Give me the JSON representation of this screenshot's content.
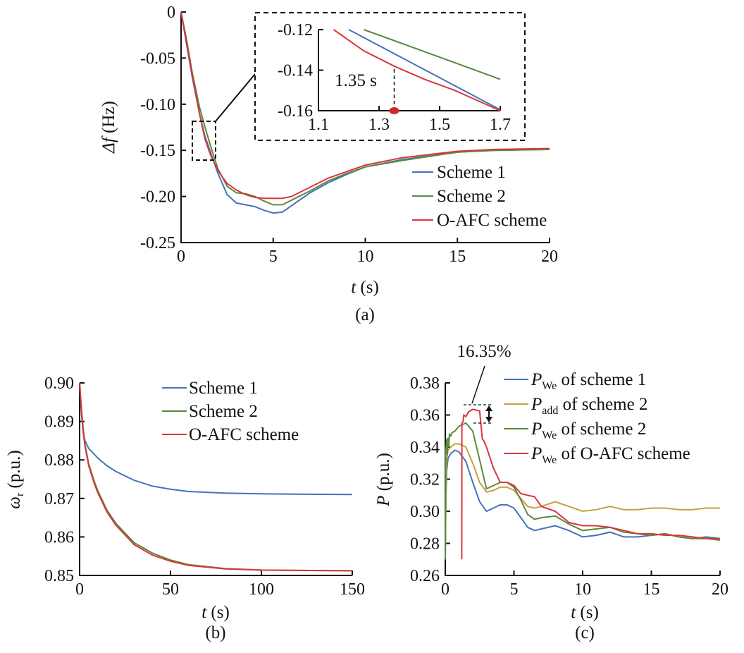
{
  "chart_data": [
    {
      "id": "a",
      "type": "line",
      "caption": "(a)",
      "ylabel": "Δf (Hz)",
      "ylabel_var": "Δf",
      "ylabel_unit": " (Hz)",
      "xlabel_var": "t",
      "xlabel_unit": " (s)",
      "xlim": [
        0,
        20
      ],
      "ylim": [
        -0.25,
        0
      ],
      "xticks": [
        0,
        5,
        10,
        15,
        20
      ],
      "yticks": [
        0,
        -0.05,
        -0.1,
        -0.15,
        -0.2,
        -0.25
      ],
      "ytick_labels": [
        "0",
        "-0.05",
        "-0.10",
        "-0.15",
        "-0.20",
        "-0.25"
      ],
      "legend_position": "right",
      "series": [
        {
          "name": "Scheme 1",
          "color": "#4472b8",
          "x": [
            0,
            0.3,
            0.6,
            1.0,
            1.3,
            1.6,
            2.0,
            2.5,
            3.0,
            3.5,
            4.0,
            4.5,
            5.0,
            5.5,
            6.0,
            7.0,
            8.0,
            9.0,
            10.0,
            12.0,
            15.0,
            17.0,
            20.0
          ],
          "y": [
            0,
            -0.035,
            -0.07,
            -0.11,
            -0.135,
            -0.152,
            -0.175,
            -0.198,
            -0.207,
            -0.209,
            -0.211,
            -0.215,
            -0.218,
            -0.217,
            -0.21,
            -0.196,
            -0.185,
            -0.176,
            -0.168,
            -0.16,
            -0.152,
            -0.15,
            -0.149
          ]
        },
        {
          "name": "Scheme 2",
          "color": "#5a8a3a",
          "x": [
            0,
            0.3,
            0.6,
            1.0,
            1.3,
            1.6,
            2.0,
            2.5,
            3.0,
            3.5,
            4.0,
            4.5,
            5.0,
            5.5,
            6.0,
            7.0,
            8.0,
            9.0,
            10.0,
            12.0,
            15.0,
            17.0,
            20.0
          ],
          "y": [
            0,
            -0.03,
            -0.065,
            -0.103,
            -0.125,
            -0.145,
            -0.17,
            -0.189,
            -0.196,
            -0.197,
            -0.2,
            -0.205,
            -0.209,
            -0.209,
            -0.204,
            -0.194,
            -0.183,
            -0.175,
            -0.168,
            -0.161,
            -0.152,
            -0.15,
            -0.149
          ]
        },
        {
          "name": "O-AFC scheme",
          "color": "#d9363e",
          "x": [
            0,
            0.3,
            0.6,
            1.0,
            1.3,
            1.6,
            2.0,
            2.5,
            3.0,
            3.5,
            4.0,
            4.5,
            5.0,
            5.5,
            6.0,
            7.0,
            8.0,
            9.0,
            10.0,
            12.0,
            15.0,
            17.0,
            20.0
          ],
          "y": [
            0,
            -0.033,
            -0.068,
            -0.11,
            -0.138,
            -0.155,
            -0.172,
            -0.186,
            -0.193,
            -0.198,
            -0.201,
            -0.202,
            -0.202,
            -0.202,
            -0.2,
            -0.19,
            -0.18,
            -0.173,
            -0.166,
            -0.158,
            -0.151,
            -0.149,
            -0.148
          ]
        }
      ],
      "inset": {
        "xlim": [
          1.1,
          1.7
        ],
        "ylim": [
          -0.16,
          -0.12
        ],
        "xticks": [
          1.1,
          1.3,
          1.5,
          1.7
        ],
        "yticks": [
          -0.12,
          -0.14,
          -0.16
        ],
        "ytick_labels": [
          "-0.12",
          "-0.14",
          "-0.16"
        ],
        "annotation": "1.35 s",
        "marker_x": 1.35,
        "series": [
          {
            "name": "Scheme 1",
            "x": [
              1.2,
              1.7
            ],
            "y": [
              -0.12,
              -0.1595
            ]
          },
          {
            "name": "Scheme 2",
            "x": [
              1.25,
              1.7
            ],
            "y": [
              -0.12,
              -0.1445
            ]
          },
          {
            "name": "O-AFC scheme",
            "x": [
              1.15,
              1.25,
              1.35,
              1.45,
              1.55,
              1.7
            ],
            "y": [
              -0.12,
              -0.1305,
              -0.138,
              -0.1445,
              -0.15,
              -0.16
            ]
          }
        ]
      }
    },
    {
      "id": "b",
      "type": "line",
      "caption": "(b)",
      "ylabel_var": "ω",
      "ylabel_sub": "r",
      "ylabel_unit": " (p.u.)",
      "xlabel_var": "t",
      "xlabel_unit": " (s)",
      "xlim": [
        0,
        150
      ],
      "ylim": [
        0.85,
        0.9
      ],
      "xticks": [
        0,
        50,
        100,
        150
      ],
      "yticks": [
        0.85,
        0.86,
        0.87,
        0.88,
        0.89,
        0.9
      ],
      "ytick_labels": [
        "0.85",
        "0.86",
        "0.87",
        "0.88",
        "0.89",
        "0.90"
      ],
      "legend_position": "top-right",
      "series": [
        {
          "name": "Scheme 1",
          "color": "#4472b8",
          "x": [
            0,
            1,
            2,
            3,
            5,
            8,
            10,
            15,
            20,
            30,
            40,
            50,
            60,
            80,
            100,
            120,
            150
          ],
          "y": [
            0.9,
            0.892,
            0.887,
            0.885,
            0.883,
            0.8815,
            0.8805,
            0.8785,
            0.877,
            0.8747,
            0.8732,
            0.8724,
            0.8718,
            0.8714,
            0.8712,
            0.8711,
            0.871
          ]
        },
        {
          "name": "Scheme 2",
          "color": "#5a8a3a",
          "x": [
            0,
            1,
            2,
            3,
            5,
            8,
            10,
            15,
            20,
            30,
            40,
            50,
            60,
            80,
            100,
            120,
            150
          ],
          "y": [
            0.9,
            0.893,
            0.888,
            0.884,
            0.879,
            0.8745,
            0.872,
            0.867,
            0.8635,
            0.8585,
            0.8558,
            0.854,
            0.8528,
            0.8518,
            0.8514,
            0.8513,
            0.8512
          ]
        },
        {
          "name": "O-AFC scheme",
          "color": "#d9363e",
          "x": [
            0,
            1,
            2,
            3,
            5,
            8,
            10,
            15,
            20,
            30,
            40,
            50,
            60,
            80,
            100,
            120,
            150
          ],
          "y": [
            0.9,
            0.893,
            0.887,
            0.8835,
            0.8785,
            0.874,
            0.8715,
            0.8665,
            0.863,
            0.858,
            0.8553,
            0.8537,
            0.8526,
            0.8517,
            0.8514,
            0.8513,
            0.8512
          ]
        }
      ]
    },
    {
      "id": "c",
      "type": "line",
      "caption": "(c)",
      "ylabel_var": "P",
      "ylabel_unit": " (p.u.)",
      "xlabel_var": "t",
      "xlabel_unit": " (s)",
      "xlim": [
        0,
        20
      ],
      "ylim": [
        0.26,
        0.38
      ],
      "xticks": [
        0,
        5,
        10,
        15,
        20
      ],
      "yticks": [
        0.26,
        0.28,
        0.3,
        0.32,
        0.34,
        0.36,
        0.38
      ],
      "ytick_labels": [
        "0.26",
        "0.28",
        "0.30",
        "0.32",
        "0.34",
        "0.36",
        "0.38"
      ],
      "legend_position": "top-right",
      "annotation": "16.35%",
      "series": [
        {
          "name_var": "P",
          "name_sub": "We",
          "name_rest": " of scheme 1",
          "color": "#4472b8",
          "x": [
            0,
            0.05,
            0.1,
            0.2,
            0.4,
            0.7,
            1.0,
            1.5,
            2.0,
            2.5,
            3.0,
            3.5,
            4.0,
            4.5,
            5.0,
            5.5,
            6.0,
            6.5,
            7.0,
            8.0,
            9.0,
            10.0,
            11.0,
            12.0,
            13.0,
            14.0,
            15.0,
            16.0,
            17.0,
            18.0,
            19.0,
            20.0
          ],
          "y": [
            0.27,
            0.31,
            0.325,
            0.333,
            0.336,
            0.338,
            0.337,
            0.331,
            0.318,
            0.306,
            0.3,
            0.302,
            0.304,
            0.304,
            0.302,
            0.296,
            0.29,
            0.288,
            0.289,
            0.291,
            0.288,
            0.284,
            0.285,
            0.287,
            0.284,
            0.284,
            0.285,
            0.286,
            0.284,
            0.283,
            0.284,
            0.283
          ]
        },
        {
          "name_var": "P",
          "name_sub": "add",
          "name_rest": " of scheme 2",
          "color": "#c9a040",
          "x": [
            0,
            0.05,
            0.1,
            0.2,
            0.4,
            0.7,
            1.0,
            1.5,
            2.0,
            2.5,
            3.0,
            3.5,
            4.0,
            4.5,
            5.0,
            5.5,
            6.0,
            6.5,
            7.0,
            8.0,
            9.0,
            10.0,
            11.0,
            12.0,
            13.0,
            14.0,
            15.0,
            16.0,
            17.0,
            18.0,
            19.0,
            20.0
          ],
          "y": [
            0.27,
            0.32,
            0.332,
            0.338,
            0.34,
            0.342,
            0.342,
            0.34,
            0.33,
            0.318,
            0.312,
            0.313,
            0.315,
            0.315,
            0.313,
            0.308,
            0.303,
            0.302,
            0.303,
            0.306,
            0.303,
            0.3,
            0.301,
            0.303,
            0.301,
            0.301,
            0.302,
            0.302,
            0.301,
            0.301,
            0.302,
            0.302
          ]
        },
        {
          "name_var": "P",
          "name_sub": "We",
          "name_rest": " of scheme 2",
          "color": "#5a8a3a",
          "x": [
            0,
            0.03,
            0.06,
            0.1,
            0.15,
            0.2,
            0.25,
            0.3,
            0.4,
            0.5,
            0.7,
            1.0,
            1.5,
            2.0,
            2.5,
            3.0,
            3.5,
            4.0,
            4.5,
            5.0,
            5.5,
            6.0,
            6.5,
            7.0,
            8.0,
            9.0,
            10.0,
            11.0,
            12.0,
            13.0,
            14.0,
            15.0,
            16.0,
            17.0,
            18.0,
            19.0,
            20.0
          ],
          "y": [
            0.27,
            0.34,
            0.338,
            0.345,
            0.335,
            0.346,
            0.34,
            0.348,
            0.347,
            0.349,
            0.35,
            0.353,
            0.355,
            0.35,
            0.332,
            0.314,
            0.316,
            0.318,
            0.318,
            0.315,
            0.307,
            0.298,
            0.295,
            0.296,
            0.297,
            0.292,
            0.288,
            0.289,
            0.29,
            0.287,
            0.286,
            0.285,
            0.286,
            0.284,
            0.283,
            0.283,
            0.282
          ]
        },
        {
          "name_var": "P",
          "name_sub": "We",
          "name_rest": " of O-AFC scheme",
          "color": "#d9363e",
          "x": [
            1.2,
            1.21,
            1.3,
            1.35,
            1.5,
            1.7,
            2.0,
            2.5,
            2.7,
            2.8,
            3.0,
            3.5,
            4.0,
            4.5,
            5.0,
            5.5,
            6.0,
            6.5,
            7.0,
            8.0,
            9.0,
            10.0,
            11.0,
            12.0,
            13.0,
            14.0,
            15.0,
            16.0,
            17.0,
            18.0,
            19.0,
            20.0
          ],
          "y": [
            0.27,
            0.355,
            0.356,
            0.36,
            0.359,
            0.362,
            0.3635,
            0.3625,
            0.345,
            0.344,
            0.34,
            0.327,
            0.318,
            0.318,
            0.316,
            0.311,
            0.31,
            0.309,
            0.303,
            0.3,
            0.293,
            0.291,
            0.291,
            0.29,
            0.288,
            0.286,
            0.286,
            0.285,
            0.285,
            0.284,
            0.283,
            0.283
          ]
        }
      ]
    }
  ]
}
